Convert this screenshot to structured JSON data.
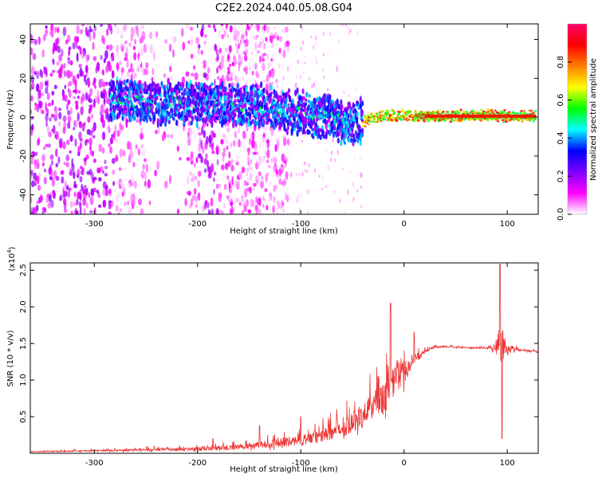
{
  "title": "C2E2.2024.040.05.08.G04",
  "chart_data": [
    {
      "type": "heatmap",
      "xlabel": "Height of straight line (km)",
      "ylabel": "Frequency (Hz)",
      "xlim": [
        -362,
        130
      ],
      "ylim": [
        -50,
        48
      ],
      "xticks": [
        -300,
        -200,
        -100,
        0,
        100
      ],
      "yticks": [
        40,
        20,
        0,
        -20,
        -40
      ],
      "colorbar": {
        "label": "Normalized spectral amplitude",
        "range": [
          0.0,
          1.0
        ],
        "ticks": [
          "0.0",
          "0.2",
          "0.4",
          "0.6",
          "0.8"
        ],
        "tick_values": [
          0.0,
          0.2,
          0.4,
          0.6,
          0.8
        ],
        "colormap": [
          "#ffffff",
          "#ff00ff",
          "#7f00ff",
          "#0000ff",
          "#00ffff",
          "#00ff00",
          "#ffff00",
          "#ff7f00",
          "#ff0000",
          "#ff0066"
        ]
      },
      "ridge": {
        "x": [
          -280,
          -250,
          -200,
          -150,
          -100,
          -70,
          -55,
          -40,
          -20,
          0,
          20,
          50,
          85,
          100,
          130
        ],
        "freq": [
          9,
          8,
          7,
          6,
          2,
          0,
          -4,
          -2,
          1,
          1,
          0.5,
          0.5,
          1,
          0.5,
          0.5
        ]
      },
      "grid": false
    },
    {
      "type": "line",
      "xlabel": "Height of straight line (km)",
      "ylabel": "SNR (10 * v/v)",
      "ylabel_multiplier": "(x10^4)",
      "xlim": [
        -362,
        130
      ],
      "ylim": [
        0,
        2.6
      ],
      "xticks": [
        -300,
        -200,
        -100,
        0,
        100
      ],
      "yticks": [
        0.5,
        1.0,
        1.5,
        2.0,
        2.5
      ],
      "ytick_labels": [
        "0.5",
        "1.0",
        "1.5",
        "2.0",
        "2.5"
      ],
      "color": "#ee3333",
      "envelope": {
        "x": [
          -362,
          -300,
          -250,
          -200,
          -150,
          -120,
          -100,
          -80,
          -60,
          -40,
          -20,
          -10,
          0,
          10,
          20,
          30,
          40,
          60,
          80,
          88,
          92,
          95,
          98,
          110,
          130
        ],
        "base": [
          0.02,
          0.03,
          0.04,
          0.05,
          0.08,
          0.12,
          0.15,
          0.2,
          0.3,
          0.45,
          0.7,
          0.9,
          1.05,
          1.25,
          1.38,
          1.45,
          1.45,
          1.44,
          1.43,
          1.42,
          1.4,
          1.38,
          1.4,
          1.41,
          1.38
        ],
        "noise": [
          0.01,
          0.02,
          0.04,
          0.05,
          0.08,
          0.12,
          0.15,
          0.18,
          0.25,
          0.35,
          0.45,
          0.45,
          0.35,
          0.15,
          0.05,
          0.03,
          0.02,
          0.02,
          0.02,
          0.15,
          0.5,
          0.6,
          0.2,
          0.03,
          0.03
        ]
      },
      "spikes": [
        {
          "x": -13,
          "y": 2.05
        },
        {
          "x": 10,
          "y": 1.65
        },
        {
          "x": -25,
          "y": 1.05
        },
        {
          "x": -140,
          "y": 0.38
        },
        {
          "x": -100,
          "y": 0.5
        },
        {
          "x": -185,
          "y": 0.2
        },
        {
          "x": 93,
          "y": 2.58
        },
        {
          "x": 95,
          "y": 0.2
        }
      ],
      "grid": false
    }
  ]
}
